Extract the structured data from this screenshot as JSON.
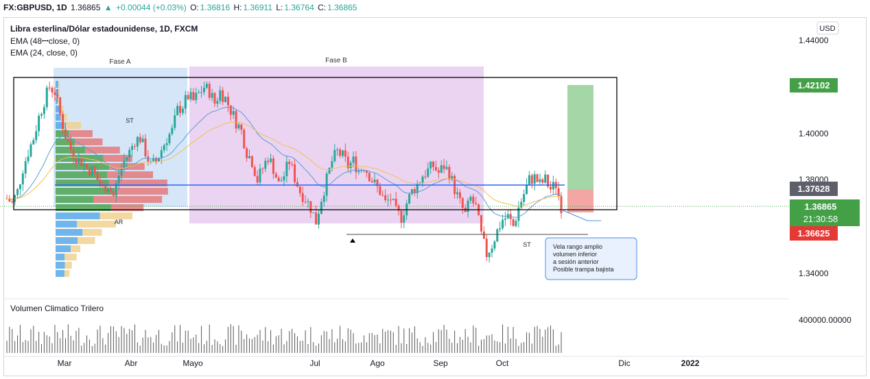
{
  "header": {
    "symbol": "FX:GBPUSD, 1D",
    "last": "1.36865",
    "change": "+0.00044 (+0.03%)",
    "open_label": "O:",
    "open": "1.36816",
    "high_label": "H:",
    "high": "1.36911",
    "low_label": "L:",
    "low": "1.36764",
    "close_label": "C:",
    "close": "1.36865",
    "up_arrow": "▲"
  },
  "legend": {
    "title": "Libra esterlina/Dólar estadounidense, 1D, FXCM",
    "ema48": "EMA (48ꟷclose, 0)",
    "ema24": "EMA (24, close, 0)"
  },
  "currency_button": "USD",
  "price_axis": {
    "ticks": [
      "1.44000",
      "1.40000",
      "1.38000",
      "1.34000"
    ],
    "volume_tick": "400000.00000",
    "badges": [
      {
        "label": "1.42102",
        "color": "#43a047"
      },
      {
        "label": "1.37628",
        "color": "#5d606b"
      },
      {
        "label": "1.36865",
        "sub": "21:30:58",
        "color": "#43a047"
      },
      {
        "label": "1.36625",
        "color": "#e53935"
      }
    ]
  },
  "time_axis": [
    "Mar",
    "Abr",
    "Mayo",
    "Jul",
    "Ago",
    "Sep",
    "Oct",
    "Dic",
    "2022"
  ],
  "annotations": {
    "fase_a": "Fase A",
    "fase_b": "Fase B",
    "st1": "ST",
    "st2": "ST",
    "ar": "AR",
    "callout": [
      "Vela rango amplio",
      "volumen inferior",
      "a sesión anterior",
      "Posible trampa bajista"
    ],
    "volume_title": "Volumen Climatico Trilero"
  },
  "colors": {
    "up": "#26a69a",
    "down": "#ef5350",
    "ema24": "#5b9bd5",
    "ema48": "#f2c14e",
    "level": "#2962ff"
  },
  "chart_data": {
    "type": "candlestick",
    "symbol": "FX:GBPUSD",
    "interval": "1D",
    "ohlc_last": {
      "open": 1.36816,
      "high": 1.36911,
      "low": 1.36764,
      "close": 1.36865
    },
    "ylim": [
      1.337,
      1.445
    ],
    "series": [
      {
        "name": "GBPUSD",
        "close_path": [
          1.372,
          1.37,
          1.375,
          1.385,
          1.392,
          1.398,
          1.407,
          1.414,
          1.42,
          1.418,
          1.408,
          1.399,
          1.393,
          1.39,
          1.388,
          1.385,
          1.384,
          1.38,
          1.376,
          1.378,
          1.373,
          1.382,
          1.388,
          1.392,
          1.397,
          1.398,
          1.392,
          1.386,
          1.388,
          1.393,
          1.398,
          1.401,
          1.41,
          1.412,
          1.416,
          1.414,
          1.417,
          1.42,
          1.418,
          1.413,
          1.418,
          1.415,
          1.41,
          1.405,
          1.401,
          1.392,
          1.388,
          1.38,
          1.385,
          1.39,
          1.385,
          1.378,
          1.382,
          1.388,
          1.381,
          1.375,
          1.372,
          1.368,
          1.362,
          1.372,
          1.38,
          1.388,
          1.392,
          1.39,
          1.386,
          1.388,
          1.384,
          1.386,
          1.382,
          1.378,
          1.375,
          1.37,
          1.372,
          1.366,
          1.364,
          1.37,
          1.375,
          1.378,
          1.382,
          1.384,
          1.386,
          1.383,
          1.386,
          1.383,
          1.376,
          1.37,
          1.365,
          1.372,
          1.368,
          1.356,
          1.348,
          1.352,
          1.358,
          1.363,
          1.364,
          1.36,
          1.368,
          1.374,
          1.38,
          1.381,
          1.378,
          1.38,
          1.376,
          1.378,
          1.36865
        ]
      },
      {
        "name": "EMA (24, close, 0)"
      },
      {
        "name": "EMA (48ꟷclose, 0)"
      }
    ],
    "levels": [
      {
        "type": "horizontal",
        "value": 1.37628
      },
      {
        "type": "support",
        "value": 1.36
      },
      {
        "type": "box",
        "from": 1.369,
        "to": 1.4212
      }
    ],
    "position": {
      "target": 1.42102,
      "entry": 1.37628,
      "stop": 1.36625
    },
    "volume_ylim": [
      0,
      400000
    ]
  }
}
